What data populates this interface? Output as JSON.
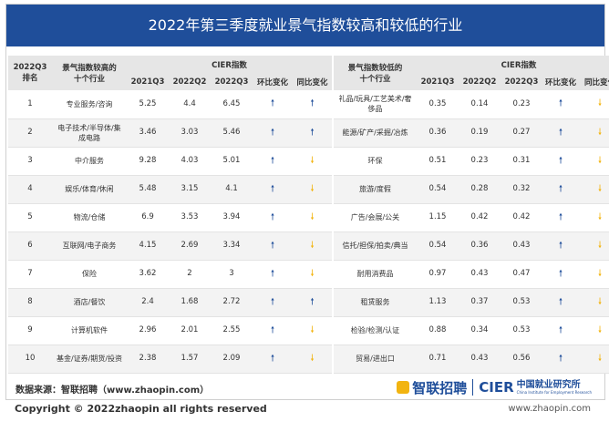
{
  "title": "2022年第三季度就业景气指数较高和较低的行业",
  "header": {
    "rank": "2022Q3\n排名",
    "high_industry": "景气指数较高的\n十个行业",
    "low_industry": "景气指数较低的\n十个行业",
    "cier_index": "CIER指数",
    "q2021q3": "2021Q3",
    "q2022q2": "2022Q2",
    "q2022q3": "2022Q3",
    "qoq": "环比变化",
    "yoy": "同比变化"
  },
  "rows": [
    {
      "rank": "1",
      "hi": "专业服务/咨询",
      "hi_2021q3": "5.25",
      "hi_2022q2": "4.4",
      "hi_2022q3": "6.45",
      "hi_qoq": "up",
      "hi_yoy": "up",
      "lo": "礼品/玩具/工艺美术/奢侈品",
      "lo_2021q3": "0.35",
      "lo_2022q2": "0.14",
      "lo_2022q3": "0.23",
      "lo_qoq": "up",
      "lo_yoy": "down"
    },
    {
      "rank": "2",
      "hi": "电子技术/半导体/集成电路",
      "hi_2021q3": "3.46",
      "hi_2022q2": "3.03",
      "hi_2022q3": "5.46",
      "hi_qoq": "up",
      "hi_yoy": "up",
      "lo": "能源/矿产/采掘/冶炼",
      "lo_2021q3": "0.36",
      "lo_2022q2": "0.19",
      "lo_2022q3": "0.27",
      "lo_qoq": "up",
      "lo_yoy": "down"
    },
    {
      "rank": "3",
      "hi": "中介服务",
      "hi_2021q3": "9.28",
      "hi_2022q2": "4.03",
      "hi_2022q3": "5.01",
      "hi_qoq": "up",
      "hi_yoy": "down",
      "lo": "环保",
      "lo_2021q3": "0.51",
      "lo_2022q2": "0.23",
      "lo_2022q3": "0.31",
      "lo_qoq": "up",
      "lo_yoy": "down"
    },
    {
      "rank": "4",
      "hi": "娱乐/体育/休闲",
      "hi_2021q3": "5.48",
      "hi_2022q2": "3.15",
      "hi_2022q3": "4.1",
      "hi_qoq": "up",
      "hi_yoy": "down",
      "lo": "旅游/度假",
      "lo_2021q3": "0.54",
      "lo_2022q2": "0.28",
      "lo_2022q3": "0.32",
      "lo_qoq": "up",
      "lo_yoy": "down"
    },
    {
      "rank": "5",
      "hi": "物流/仓储",
      "hi_2021q3": "6.9",
      "hi_2022q2": "3.53",
      "hi_2022q3": "3.94",
      "hi_qoq": "up",
      "hi_yoy": "down",
      "lo": "广告/会展/公关",
      "lo_2021q3": "1.15",
      "lo_2022q2": "0.42",
      "lo_2022q3": "0.42",
      "lo_qoq": "up",
      "lo_yoy": "down"
    },
    {
      "rank": "6",
      "hi": "互联网/电子商务",
      "hi_2021q3": "4.15",
      "hi_2022q2": "2.69",
      "hi_2022q3": "3.34",
      "hi_qoq": "up",
      "hi_yoy": "down",
      "lo": "信托/担保/拍卖/典当",
      "lo_2021q3": "0.54",
      "lo_2022q2": "0.36",
      "lo_2022q3": "0.43",
      "lo_qoq": "up",
      "lo_yoy": "down"
    },
    {
      "rank": "7",
      "hi": "保险",
      "hi_2021q3": "3.62",
      "hi_2022q2": "2",
      "hi_2022q3": "3",
      "hi_qoq": "up",
      "hi_yoy": "down",
      "lo": "耐用消费品",
      "lo_2021q3": "0.97",
      "lo_2022q2": "0.43",
      "lo_2022q3": "0.47",
      "lo_qoq": "up",
      "lo_yoy": "down"
    },
    {
      "rank": "8",
      "hi": "酒店/餐饮",
      "hi_2021q3": "2.4",
      "hi_2022q2": "1.68",
      "hi_2022q3": "2.72",
      "hi_qoq": "up",
      "hi_yoy": "up",
      "lo": "租赁服务",
      "lo_2021q3": "1.13",
      "lo_2022q2": "0.37",
      "lo_2022q3": "0.53",
      "lo_qoq": "up",
      "lo_yoy": "down"
    },
    {
      "rank": "9",
      "hi": "计算机软件",
      "hi_2021q3": "2.96",
      "hi_2022q2": "2.01",
      "hi_2022q3": "2.55",
      "hi_qoq": "up",
      "hi_yoy": "down",
      "lo": "检验/检测/认证",
      "lo_2021q3": "0.88",
      "lo_2022q2": "0.34",
      "lo_2022q3": "0.53",
      "lo_qoq": "up",
      "lo_yoy": "down"
    },
    {
      "rank": "10",
      "hi": "基金/证券/期货/投资",
      "hi_2021q3": "2.38",
      "hi_2022q2": "1.57",
      "hi_2022q3": "2.09",
      "hi_qoq": "up",
      "hi_yoy": "down",
      "lo": "贸易/进出口",
      "lo_2021q3": "0.71",
      "lo_2022q2": "0.43",
      "lo_2022q3": "0.56",
      "lo_qoq": "up",
      "lo_yoy": "down"
    }
  ],
  "arrows": {
    "up": "🠕",
    "down": "🠗"
  },
  "colors": {
    "up": "#1f4e9a",
    "down": "#f2b410",
    "banner": "#1f4e9a"
  },
  "footer": {
    "source": "数据来源：智联招聘（www.zhaopin.com）",
    "zhilian_logo": "智联招聘",
    "cier_logo": "CIER",
    "cier_cn": "中国就业研究所",
    "cier_en": "China Institute for Employment Research",
    "copyright": "Copyright © 2022zhaopin all rights reserved",
    "url": "www.zhaopin.com"
  }
}
